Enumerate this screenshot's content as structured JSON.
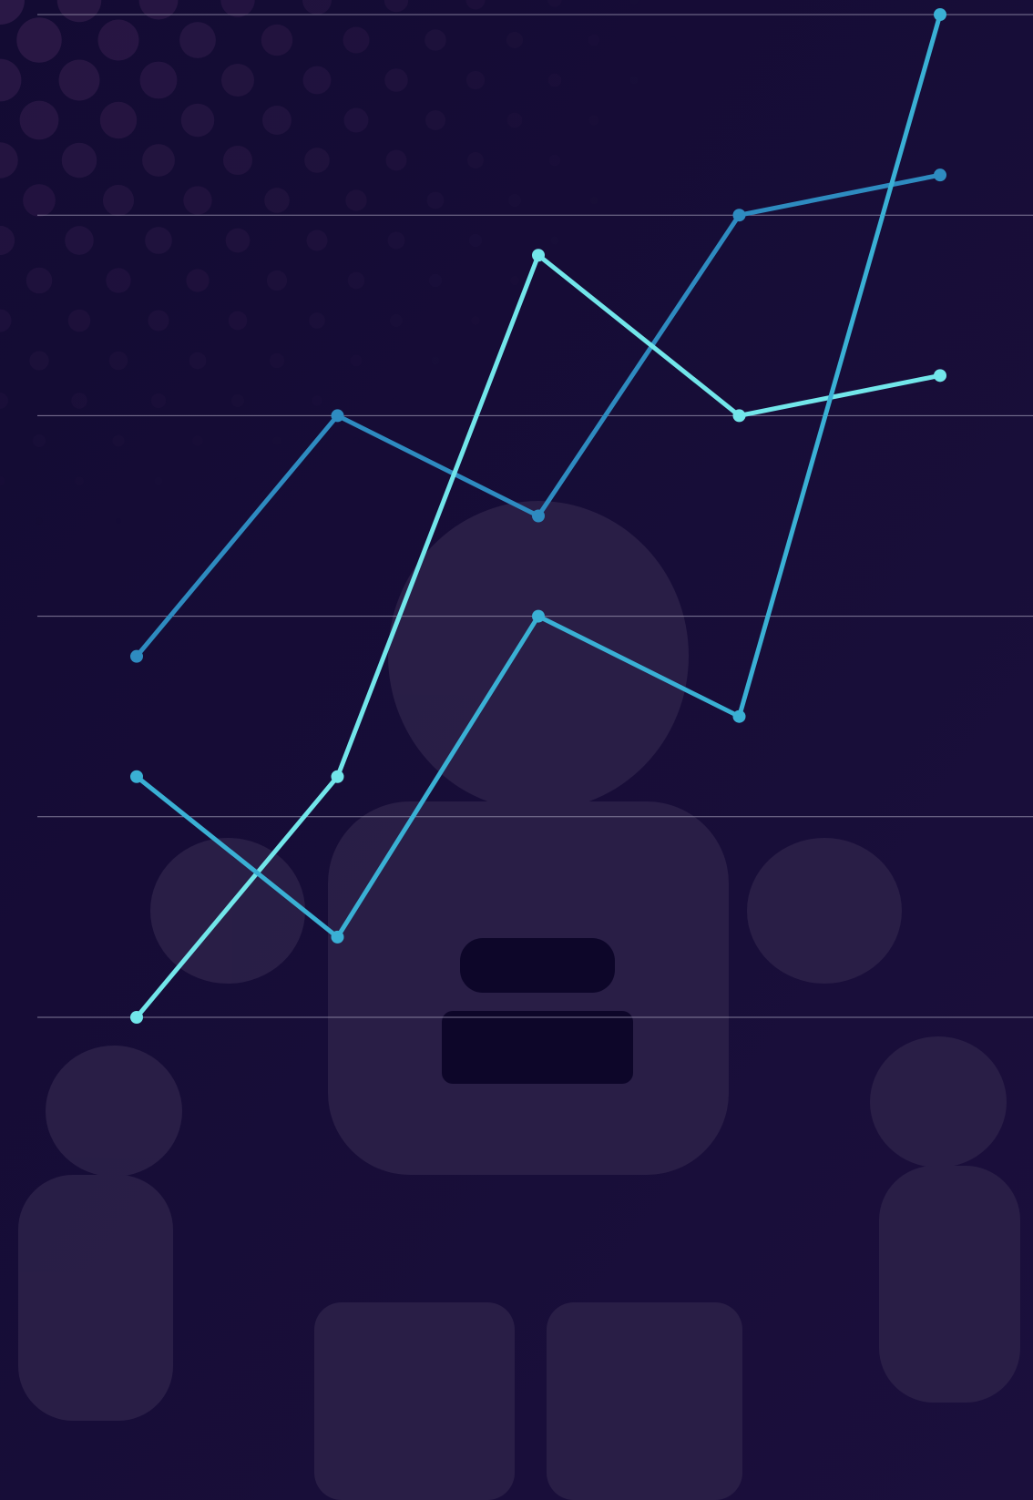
{
  "chart_data": {
    "type": "line",
    "categories": [
      null,
      null,
      null,
      null,
      null
    ],
    "series": [
      {
        "color": "#2e8bc0",
        "values": [
          1.8,
          3.0,
          2.5,
          4.0,
          4.2
        ]
      },
      {
        "color": "#72e6ea",
        "values": [
          0,
          1.2,
          3.8,
          3.0,
          3.2
        ]
      },
      {
        "color": "#3ab0d4",
        "values": [
          1.2,
          0.4,
          2.0,
          1.5,
          5.0
        ]
      }
    ],
    "ylim": [
      0,
      5
    ],
    "yticks": [
      0,
      1,
      2,
      3,
      4,
      5
    ],
    "grid": true
  }
}
